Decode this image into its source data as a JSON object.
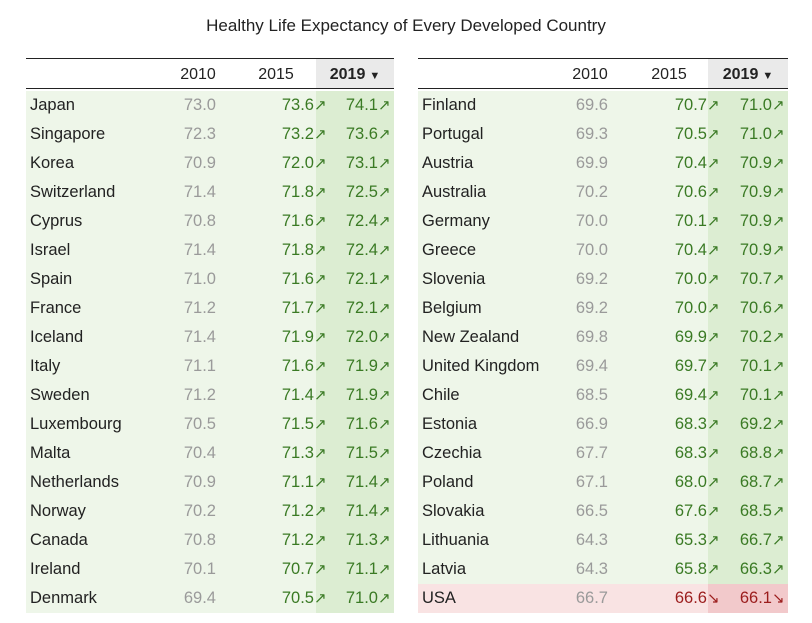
{
  "title": "Healthy Life Expectancy of Every Developed Country",
  "headers": {
    "y2010": "2010",
    "y2015": "2015",
    "y2019": "2019",
    "sort_icon": "▼"
  },
  "colors": {
    "up_text": "#3a7a24",
    "down_text": "#9b1c1c",
    "base_text": "#9a9a9a",
    "up_row_bg": "#eef6e9",
    "up_col_bg": "#dcedd2",
    "down_row_bg": "#f9e3e3",
    "down_col_bg": "#f2c9cb"
  },
  "chart_data": {
    "type": "table",
    "title": "Healthy Life Expectancy of Every Developed Country",
    "columns": [
      "2010",
      "2015",
      "2019"
    ],
    "sorted_by": "2019",
    "sort_order": "descending",
    "rows": [
      {
        "country": "Japan",
        "y2010": "73.0",
        "y2015": "73.6",
        "y2019": "74.1",
        "t15": "↗",
        "t19": "↗",
        "trend": "up"
      },
      {
        "country": "Singapore",
        "y2010": "72.3",
        "y2015": "73.2",
        "y2019": "73.6",
        "t15": "↗",
        "t19": "↗",
        "trend": "up"
      },
      {
        "country": "Korea",
        "y2010": "70.9",
        "y2015": "72.0",
        "y2019": "73.1",
        "t15": "↗",
        "t19": "↗",
        "trend": "up"
      },
      {
        "country": "Switzerland",
        "y2010": "71.4",
        "y2015": "71.8",
        "y2019": "72.5",
        "t15": "↗",
        "t19": "↗",
        "trend": "up"
      },
      {
        "country": "Cyprus",
        "y2010": "70.8",
        "y2015": "71.6",
        "y2019": "72.4",
        "t15": "↗",
        "t19": "↗",
        "trend": "up"
      },
      {
        "country": "Israel",
        "y2010": "71.4",
        "y2015": "71.8",
        "y2019": "72.4",
        "t15": "↗",
        "t19": "↗",
        "trend": "up"
      },
      {
        "country": "Spain",
        "y2010": "71.0",
        "y2015": "71.6",
        "y2019": "72.1",
        "t15": "↗",
        "t19": "↗",
        "trend": "up"
      },
      {
        "country": "France",
        "y2010": "71.2",
        "y2015": "71.7",
        "y2019": "72.1",
        "t15": "↗",
        "t19": "↗",
        "trend": "up"
      },
      {
        "country": "Iceland",
        "y2010": "71.4",
        "y2015": "71.9",
        "y2019": "72.0",
        "t15": "↗",
        "t19": "↗",
        "trend": "up"
      },
      {
        "country": "Italy",
        "y2010": "71.1",
        "y2015": "71.6",
        "y2019": "71.9",
        "t15": "↗",
        "t19": "↗",
        "trend": "up"
      },
      {
        "country": "Sweden",
        "y2010": "71.2",
        "y2015": "71.4",
        "y2019": "71.9",
        "t15": "↗",
        "t19": "↗",
        "trend": "up"
      },
      {
        "country": "Luxembourg",
        "y2010": "70.5",
        "y2015": "71.5",
        "y2019": "71.6",
        "t15": "↗",
        "t19": "↗",
        "trend": "up"
      },
      {
        "country": "Malta",
        "y2010": "70.4",
        "y2015": "71.3",
        "y2019": "71.5",
        "t15": "↗",
        "t19": "↗",
        "trend": "up"
      },
      {
        "country": "Netherlands",
        "y2010": "70.9",
        "y2015": "71.1",
        "y2019": "71.4",
        "t15": "↗",
        "t19": "↗",
        "trend": "up"
      },
      {
        "country": "Norway",
        "y2010": "70.2",
        "y2015": "71.2",
        "y2019": "71.4",
        "t15": "↗",
        "t19": "↗",
        "trend": "up"
      },
      {
        "country": "Canada",
        "y2010": "70.8",
        "y2015": "71.2",
        "y2019": "71.3",
        "t15": "↗",
        "t19": "↗",
        "trend": "up"
      },
      {
        "country": "Ireland",
        "y2010": "70.1",
        "y2015": "70.7",
        "y2019": "71.1",
        "t15": "↗",
        "t19": "↗",
        "trend": "up"
      },
      {
        "country": "Denmark",
        "y2010": "69.4",
        "y2015": "70.5",
        "y2019": "71.0",
        "t15": "↗",
        "t19": "↗",
        "trend": "up"
      },
      {
        "country": "Finland",
        "y2010": "69.6",
        "y2015": "70.7",
        "y2019": "71.0",
        "t15": "↗",
        "t19": "↗",
        "trend": "up"
      },
      {
        "country": "Portugal",
        "y2010": "69.3",
        "y2015": "70.5",
        "y2019": "71.0",
        "t15": "↗",
        "t19": "↗",
        "trend": "up"
      },
      {
        "country": "Austria",
        "y2010": "69.9",
        "y2015": "70.4",
        "y2019": "70.9",
        "t15": "↗",
        "t19": "↗",
        "trend": "up"
      },
      {
        "country": "Australia",
        "y2010": "70.2",
        "y2015": "70.6",
        "y2019": "70.9",
        "t15": "↗",
        "t19": "↗",
        "trend": "up"
      },
      {
        "country": "Germany",
        "y2010": "70.0",
        "y2015": "70.1",
        "y2019": "70.9",
        "t15": "↗",
        "t19": "↗",
        "trend": "up"
      },
      {
        "country": "Greece",
        "y2010": "70.0",
        "y2015": "70.4",
        "y2019": "70.9",
        "t15": "↗",
        "t19": "↗",
        "trend": "up"
      },
      {
        "country": "Slovenia",
        "y2010": "69.2",
        "y2015": "70.0",
        "y2019": "70.7",
        "t15": "↗",
        "t19": "↗",
        "trend": "up"
      },
      {
        "country": "Belgium",
        "y2010": "69.2",
        "y2015": "70.0",
        "y2019": "70.6",
        "t15": "↗",
        "t19": "↗",
        "trend": "up"
      },
      {
        "country": "New Zealand",
        "y2010": "69.8",
        "y2015": "69.9",
        "y2019": "70.2",
        "t15": "↗",
        "t19": "↗",
        "trend": "up"
      },
      {
        "country": "United Kingdom",
        "y2010": "69.4",
        "y2015": "69.7",
        "y2019": "70.1",
        "t15": "↗",
        "t19": "↗",
        "trend": "up"
      },
      {
        "country": "Chile",
        "y2010": "68.5",
        "y2015": "69.4",
        "y2019": "70.1",
        "t15": "↗",
        "t19": "↗",
        "trend": "up"
      },
      {
        "country": "Estonia",
        "y2010": "66.9",
        "y2015": "68.3",
        "y2019": "69.2",
        "t15": "↗",
        "t19": "↗",
        "trend": "up"
      },
      {
        "country": "Czechia",
        "y2010": "67.7",
        "y2015": "68.3",
        "y2019": "68.8",
        "t15": "↗",
        "t19": "↗",
        "trend": "up"
      },
      {
        "country": "Poland",
        "y2010": "67.1",
        "y2015": "68.0",
        "y2019": "68.7",
        "t15": "↗",
        "t19": "↗",
        "trend": "up"
      },
      {
        "country": "Slovakia",
        "y2010": "66.5",
        "y2015": "67.6",
        "y2019": "68.5",
        "t15": "↗",
        "t19": "↗",
        "trend": "up"
      },
      {
        "country": "Lithuania",
        "y2010": "64.3",
        "y2015": "65.3",
        "y2019": "66.7",
        "t15": "↗",
        "t19": "↗",
        "trend": "up"
      },
      {
        "country": "Latvia",
        "y2010": "64.3",
        "y2015": "65.8",
        "y2019": "66.3",
        "t15": "↗",
        "t19": "↗",
        "trend": "up"
      },
      {
        "country": "USA",
        "y2010": "66.7",
        "y2015": "66.6",
        "y2019": "66.1",
        "t15": "↘",
        "t19": "↘",
        "trend": "down"
      }
    ]
  }
}
